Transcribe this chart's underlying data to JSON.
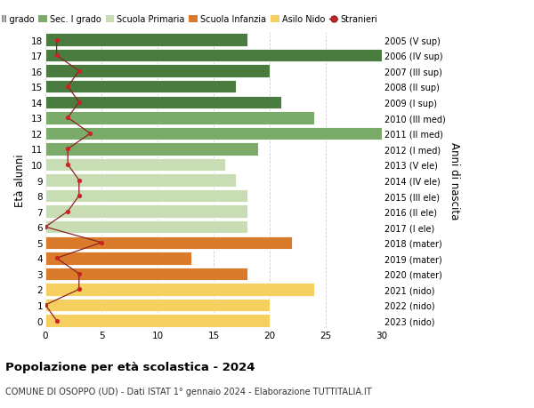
{
  "ages": [
    18,
    17,
    16,
    15,
    14,
    13,
    12,
    11,
    10,
    9,
    8,
    7,
    6,
    5,
    4,
    3,
    2,
    1,
    0
  ],
  "right_labels": [
    "2005 (V sup)",
    "2006 (IV sup)",
    "2007 (III sup)",
    "2008 (II sup)",
    "2009 (I sup)",
    "2010 (III med)",
    "2011 (II med)",
    "2012 (I med)",
    "2013 (V ele)",
    "2014 (IV ele)",
    "2015 (III ele)",
    "2016 (II ele)",
    "2017 (I ele)",
    "2018 (mater)",
    "2019 (mater)",
    "2020 (mater)",
    "2021 (nido)",
    "2022 (nido)",
    "2023 (nido)"
  ],
  "bar_values": [
    18,
    30,
    20,
    17,
    21,
    24,
    30,
    19,
    16,
    17,
    18,
    18,
    18,
    22,
    13,
    18,
    24,
    20,
    20
  ],
  "bar_colors": [
    "#4a7c3f",
    "#4a7c3f",
    "#4a7c3f",
    "#4a7c3f",
    "#4a7c3f",
    "#7aab6a",
    "#7aab6a",
    "#7aab6a",
    "#c8ddb4",
    "#c8ddb4",
    "#c8ddb4",
    "#c8ddb4",
    "#c8ddb4",
    "#d97b2b",
    "#d97b2b",
    "#d97b2b",
    "#f5d060",
    "#f5d060",
    "#f5d060"
  ],
  "stranieri_values": [
    1,
    1,
    3,
    2,
    3,
    2,
    4,
    2,
    2,
    3,
    3,
    2,
    0,
    5,
    1,
    3,
    3,
    0,
    1
  ],
  "ylabel_left": "Età alunni",
  "ylabel_right": "Anni di nascita",
  "title": "Popolazione per età scolastica - 2024",
  "subtitle": "COMUNE DI OSOPPO (UD) - Dati ISTAT 1° gennaio 2024 - Elaborazione TUTTITALIA.IT",
  "xlim": [
    0,
    30
  ],
  "xticks": [
    0,
    5,
    10,
    15,
    20,
    25,
    30
  ],
  "legend_labels": [
    "Sec. II grado",
    "Sec. I grado",
    "Scuola Primaria",
    "Scuola Infanzia",
    "Asilo Nido",
    "Stranieri"
  ],
  "legend_colors": [
    "#4a7c3f",
    "#7aab6a",
    "#c8ddb4",
    "#d97b2b",
    "#f5d060",
    "#cc2222"
  ],
  "bar_height": 0.82,
  "background_color": "#ffffff",
  "grid_color": "#cccccc",
  "line_color": "#8b2222",
  "dot_color": "#cc2222"
}
